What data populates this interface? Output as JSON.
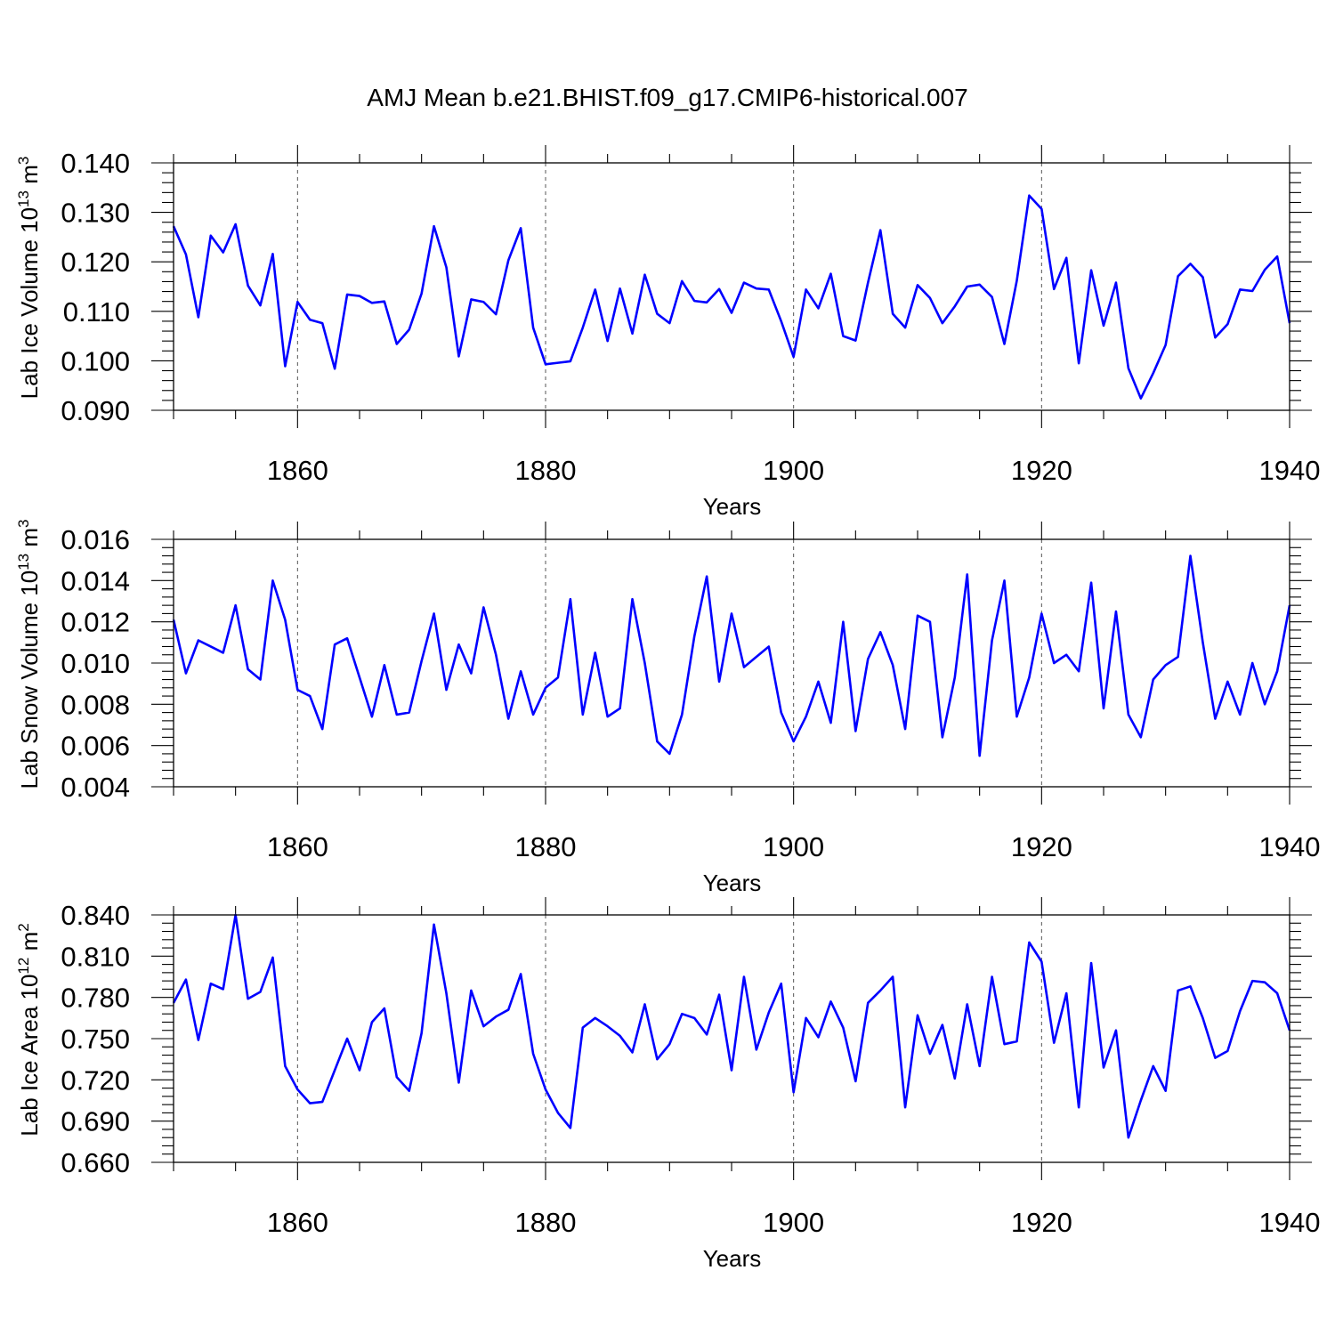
{
  "title": "AMJ Mean b.e21.BHIST.f09_g17.CMIP6-historical.007",
  "colors": {
    "series": "#0000ff",
    "axis": "#000000",
    "grid": "#555555",
    "background": "#ffffff"
  },
  "chart_data": [
    {
      "type": "line",
      "xlabel": "Years",
      "ylabel": {
        "text": "Lab Ice Volume 10",
        "exp": "13",
        "unit": " m",
        "unit_exp": "3"
      },
      "xlim": [
        1850,
        1940
      ],
      "ylim": [
        0.09,
        0.14
      ],
      "xticks": [
        "1860",
        "1880",
        "1900",
        "1920",
        "1940"
      ],
      "yticks": [
        "0.090",
        "0.100",
        "0.110",
        "0.120",
        "0.130",
        "0.140"
      ],
      "grid": "dashed vertical at labeled years",
      "x_start": 1850,
      "values": [
        0.1272,
        0.1215,
        0.1088,
        0.1253,
        0.1219,
        0.1276,
        0.1152,
        0.1112,
        0.1216,
        0.0989,
        0.1119,
        0.1083,
        0.1076,
        0.0984,
        0.1134,
        0.1131,
        0.1117,
        0.112,
        0.1034,
        0.1063,
        0.1136,
        0.1272,
        0.1189,
        0.1009,
        0.1124,
        0.1119,
        0.1094,
        0.1203,
        0.1268,
        0.1067,
        0.0993,
        0.0996,
        0.0999,
        0.1067,
        0.1144,
        0.104,
        0.1146,
        0.1055,
        0.1174,
        0.1095,
        0.1076,
        0.1161,
        0.1121,
        0.1118,
        0.1145,
        0.1097,
        0.1158,
        0.1146,
        0.1144,
        0.108,
        0.1008,
        0.1144,
        0.1106,
        0.1176,
        0.105,
        0.1041,
        0.1158,
        0.1264,
        0.1095,
        0.1067,
        0.1153,
        0.1127,
        0.1076,
        0.111,
        0.115,
        0.1154,
        0.1129,
        0.1034,
        0.1162,
        0.1334,
        0.1307,
        0.1145,
        0.1208,
        0.0995,
        0.1183,
        0.1071,
        0.1158,
        0.0985,
        0.0924,
        0.0975,
        0.1032,
        0.1171,
        0.1196,
        0.1169,
        0.1047,
        0.1074,
        0.1144,
        0.1141,
        0.1184,
        0.1211,
        0.1076
      ]
    },
    {
      "type": "line",
      "xlabel": "Years",
      "ylabel": {
        "text": "Lab Snow Volume 10",
        "exp": "13",
        "unit": " m",
        "unit_exp": "3"
      },
      "xlim": [
        1850,
        1940
      ],
      "ylim": [
        0.004,
        0.016
      ],
      "xticks": [
        "1860",
        "1880",
        "1900",
        "1920",
        "1940"
      ],
      "yticks": [
        "0.004",
        "0.006",
        "0.008",
        "0.010",
        "0.012",
        "0.014",
        "0.016"
      ],
      "grid": "dashed vertical at labeled years",
      "x_start": 1850,
      "values": [
        0.0121,
        0.0095,
        0.0111,
        0.0108,
        0.0105,
        0.0128,
        0.0097,
        0.0092,
        0.014,
        0.0121,
        0.0087,
        0.0084,
        0.0068,
        0.0109,
        0.0112,
        0.0093,
        0.0074,
        0.0099,
        0.0075,
        0.0076,
        0.0101,
        0.0124,
        0.0087,
        0.0109,
        0.0095,
        0.0127,
        0.0104,
        0.0073,
        0.0096,
        0.0075,
        0.0088,
        0.0093,
        0.0131,
        0.0075,
        0.0105,
        0.0074,
        0.0078,
        0.0131,
        0.01,
        0.0062,
        0.0056,
        0.0075,
        0.0113,
        0.0142,
        0.0091,
        0.0124,
        0.0098,
        0.0103,
        0.0108,
        0.0076,
        0.0062,
        0.0074,
        0.0091,
        0.0071,
        0.012,
        0.0067,
        0.0102,
        0.0115,
        0.0099,
        0.0068,
        0.0123,
        0.012,
        0.0064,
        0.0093,
        0.0143,
        0.0055,
        0.0111,
        0.014,
        0.0074,
        0.0093,
        0.0124,
        0.01,
        0.0104,
        0.0096,
        0.0139,
        0.0078,
        0.0125,
        0.0075,
        0.0064,
        0.0092,
        0.0099,
        0.0103,
        0.0152,
        0.011,
        0.0073,
        0.0091,
        0.0075,
        0.01,
        0.008,
        0.0096,
        0.0128
      ]
    },
    {
      "type": "line",
      "xlabel": "Years",
      "ylabel": {
        "text": "Lab Ice Area 10",
        "exp": "12",
        "unit": " m",
        "unit_exp": "2"
      },
      "xlim": [
        1850,
        1940
      ],
      "ylim": [
        0.66,
        0.84
      ],
      "xticks": [
        "1860",
        "1880",
        "1900",
        "1920",
        "1940"
      ],
      "yticks": [
        "0.660",
        "0.690",
        "0.720",
        "0.750",
        "0.780",
        "0.810",
        "0.840"
      ],
      "grid": "dashed vertical at labeled years",
      "x_start": 1850,
      "values": [
        0.776,
        0.793,
        0.749,
        0.79,
        0.786,
        0.84,
        0.779,
        0.784,
        0.809,
        0.73,
        0.713,
        0.703,
        0.704,
        0.727,
        0.75,
        0.727,
        0.762,
        0.772,
        0.722,
        0.712,
        0.754,
        0.833,
        0.783,
        0.718,
        0.785,
        0.759,
        0.766,
        0.771,
        0.797,
        0.739,
        0.713,
        0.696,
        0.685,
        0.758,
        0.765,
        0.759,
        0.752,
        0.74,
        0.775,
        0.735,
        0.746,
        0.768,
        0.765,
        0.753,
        0.782,
        0.727,
        0.795,
        0.742,
        0.769,
        0.79,
        0.711,
        0.765,
        0.751,
        0.777,
        0.758,
        0.719,
        0.776,
        0.785,
        0.795,
        0.7,
        0.767,
        0.739,
        0.76,
        0.721,
        0.775,
        0.73,
        0.795,
        0.746,
        0.748,
        0.82,
        0.806,
        0.747,
        0.783,
        0.7,
        0.805,
        0.729,
        0.756,
        0.678,
        0.705,
        0.73,
        0.712,
        0.785,
        0.788,
        0.765,
        0.736,
        0.741,
        0.77,
        0.792,
        0.791,
        0.783,
        0.756
      ]
    }
  ]
}
